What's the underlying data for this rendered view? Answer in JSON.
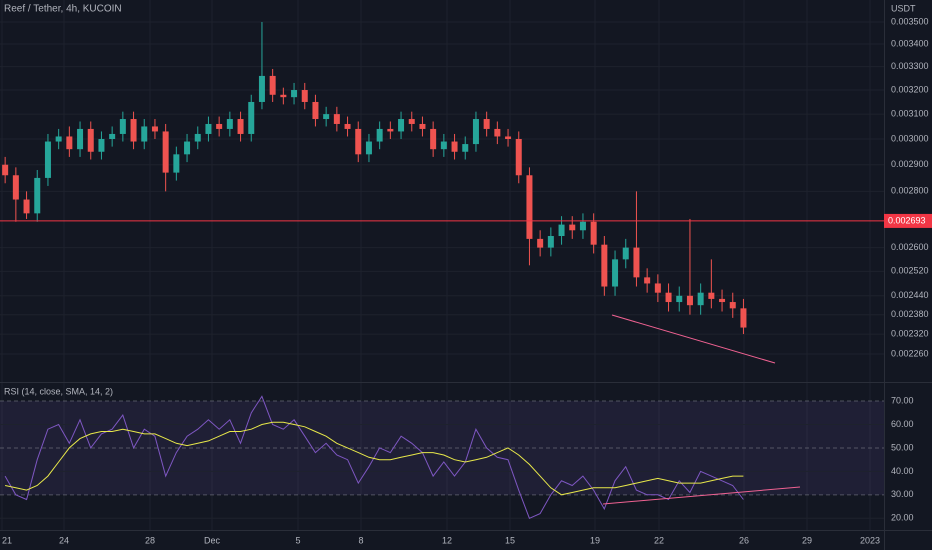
{
  "chart_data": [
    {
      "type": "candlestick",
      "title": "Reef / Tether, 4h, KUCOIN",
      "currency": "USDT",
      "up_color": "#26a69a",
      "down_color": "#ef5350",
      "log_scale": true,
      "grid": true,
      "xticks": [
        "21",
        "24",
        "28",
        "Dec",
        "5",
        "8",
        "12",
        "15",
        "19",
        "22",
        "26",
        "29",
        "2023"
      ],
      "ylim": [
        0.002178,
        0.003603
      ],
      "yticks": [
        {
          "value": 0.0035,
          "label": "0.003500"
        },
        {
          "value": 0.0034,
          "label": "0.003400"
        },
        {
          "value": 0.0033,
          "label": "0.003300"
        },
        {
          "value": 0.0032,
          "label": "0.003200"
        },
        {
          "value": 0.0031,
          "label": "0.003100"
        },
        {
          "value": 0.003,
          "label": "0.003000"
        },
        {
          "value": 0.0029,
          "label": "0.002900"
        },
        {
          "value": 0.0028,
          "label": "0.002800"
        },
        {
          "value": 0.0026,
          "label": "0.002600"
        },
        {
          "value": 0.00252,
          "label": "0.002520"
        },
        {
          "value": 0.00244,
          "label": "0.002440"
        },
        {
          "value": 0.00238,
          "label": "0.002380"
        },
        {
          "value": 0.00232,
          "label": "0.002320"
        },
        {
          "value": 0.00226,
          "label": "0.002260"
        }
      ],
      "price_line": 0.002693,
      "price_line_color": "#f23645",
      "open": [
        0.0029,
        0.00286,
        0.00277,
        0.00272,
        0.00285,
        0.00299,
        0.00301,
        0.00296,
        0.00304,
        0.00295,
        0.003,
        0.00302,
        0.00308,
        0.00299,
        0.00305,
        0.00303,
        0.00287,
        0.00294,
        0.00299,
        0.00302,
        0.00306,
        0.00304,
        0.00308,
        0.00302,
        0.00315,
        0.00326,
        0.00318,
        0.00317,
        0.0032,
        0.00315,
        0.00308,
        0.0031,
        0.00306,
        0.00304,
        0.00294,
        0.00299,
        0.00304,
        0.00303,
        0.00308,
        0.00306,
        0.00304,
        0.00296,
        0.00299,
        0.00295,
        0.00298,
        0.00308,
        0.00304,
        0.00301,
        0.003,
        0.00286,
        0.00263,
        0.0026,
        0.00264,
        0.00268,
        0.00266,
        0.00269,
        0.00261,
        0.00247,
        0.00256,
        0.0026,
        0.0025,
        0.00248,
        0.00245,
        0.00242,
        0.00244,
        0.00241,
        0.00245,
        0.00243,
        0.00242,
        0.0024
      ],
      "high": [
        0.00293,
        0.00289,
        0.0028,
        0.00288,
        0.00302,
        0.00304,
        0.00305,
        0.00307,
        0.00307,
        0.00303,
        0.00305,
        0.00311,
        0.00311,
        0.00308,
        0.00308,
        0.00306,
        0.00297,
        0.00302,
        0.00305,
        0.00309,
        0.00309,
        0.00311,
        0.00311,
        0.00318,
        0.0035,
        0.00329,
        0.00321,
        0.00323,
        0.00323,
        0.00318,
        0.00313,
        0.00313,
        0.00309,
        0.00307,
        0.00302,
        0.00307,
        0.00307,
        0.00311,
        0.00311,
        0.00309,
        0.00307,
        0.00302,
        0.00302,
        0.00301,
        0.00311,
        0.00311,
        0.00307,
        0.00304,
        0.00303,
        0.00289,
        0.00266,
        0.00267,
        0.00271,
        0.00271,
        0.00272,
        0.00272,
        0.00264,
        0.00259,
        0.00263,
        0.0028,
        0.00253,
        0.00251,
        0.00248,
        0.00247,
        0.0027,
        0.00248,
        0.00256,
        0.00246,
        0.00245,
        0.00243
      ],
      "low": [
        0.00283,
        0.00269,
        0.0027,
        0.00269,
        0.00282,
        0.00296,
        0.00293,
        0.00293,
        0.00292,
        0.00292,
        0.00297,
        0.00299,
        0.00296,
        0.00296,
        0.003,
        0.0028,
        0.00284,
        0.00291,
        0.00296,
        0.00299,
        0.00301,
        0.00301,
        0.00299,
        0.00299,
        0.00312,
        0.00315,
        0.00314,
        0.00314,
        0.00312,
        0.00305,
        0.00305,
        0.00303,
        0.00301,
        0.00291,
        0.00291,
        0.00296,
        0.003,
        0.003,
        0.00303,
        0.00301,
        0.00293,
        0.00293,
        0.00292,
        0.00292,
        0.00295,
        0.00301,
        0.00298,
        0.00297,
        0.00283,
        0.00254,
        0.00257,
        0.00257,
        0.00261,
        0.00263,
        0.00263,
        0.00258,
        0.00244,
        0.00244,
        0.00253,
        0.00247,
        0.00245,
        0.00242,
        0.00239,
        0.00239,
        0.00238,
        0.00238,
        0.0024,
        0.00239,
        0.00237,
        0.00232
      ],
      "close": [
        0.00286,
        0.00277,
        0.00272,
        0.00285,
        0.00299,
        0.00301,
        0.00296,
        0.00304,
        0.00295,
        0.003,
        0.00302,
        0.00308,
        0.00299,
        0.00305,
        0.00303,
        0.00287,
        0.00294,
        0.00299,
        0.00302,
        0.00306,
        0.00304,
        0.00308,
        0.00302,
        0.00315,
        0.00326,
        0.00318,
        0.00317,
        0.0032,
        0.00315,
        0.00308,
        0.0031,
        0.00306,
        0.00304,
        0.00294,
        0.00299,
        0.00304,
        0.00303,
        0.00308,
        0.00306,
        0.00304,
        0.00296,
        0.00299,
        0.00295,
        0.00298,
        0.00308,
        0.00304,
        0.00301,
        0.003,
        0.00286,
        0.00263,
        0.0026,
        0.00264,
        0.00268,
        0.00266,
        0.00269,
        0.00261,
        0.00247,
        0.00256,
        0.0026,
        0.0025,
        0.00248,
        0.00245,
        0.00242,
        0.00244,
        0.00241,
        0.00245,
        0.00243,
        0.00242,
        0.0024,
        0.00234
      ]
    },
    {
      "type": "line",
      "title": "RSI (14, close, SMA, 14, 2)",
      "band": [
        30,
        70
      ],
      "band_color": "#7e57c2",
      "ylim": [
        15,
        77.7
      ],
      "yticks": [
        {
          "value": 70,
          "label": "70.00"
        },
        {
          "value": 60,
          "label": "60.00"
        },
        {
          "value": 50,
          "label": "50.00"
        },
        {
          "value": 40,
          "label": "40.00"
        },
        {
          "value": 30,
          "label": "30.00"
        },
        {
          "value": 20,
          "label": "20.00"
        }
      ],
      "series": [
        {
          "color": "#7e57c2",
          "values": [
            38,
            30,
            28,
            45,
            58,
            60,
            52,
            62,
            50,
            56,
            58,
            64,
            50,
            58,
            55,
            38,
            48,
            55,
            58,
            62,
            58,
            62,
            52,
            65,
            72,
            60,
            58,
            62,
            55,
            48,
            52,
            47,
            45,
            35,
            42,
            50,
            48,
            55,
            52,
            48,
            38,
            44,
            38,
            44,
            58,
            50,
            46,
            45,
            32,
            20,
            22,
            30,
            36,
            34,
            38,
            32,
            24,
            36,
            42,
            32,
            30,
            30,
            28,
            36,
            31,
            40,
            38,
            36,
            34,
            28
          ]
        },
        {
          "color": "#e8e84a",
          "values": [
            34,
            33,
            32,
            34,
            38,
            44,
            50,
            54,
            56,
            57,
            57,
            58,
            57,
            56,
            56,
            54,
            52,
            51,
            52,
            53,
            55,
            57,
            57,
            58,
            60,
            61,
            61,
            60,
            59,
            57,
            55,
            52,
            50,
            48,
            46,
            45,
            45,
            46,
            47,
            48,
            48,
            47,
            45,
            44,
            45,
            46,
            48,
            50,
            47,
            43,
            38,
            33,
            30,
            31,
            32,
            33,
            33,
            33,
            34,
            35,
            36,
            37,
            36,
            35,
            35,
            35,
            36,
            37,
            38,
            38
          ]
        }
      ]
    }
  ]
}
